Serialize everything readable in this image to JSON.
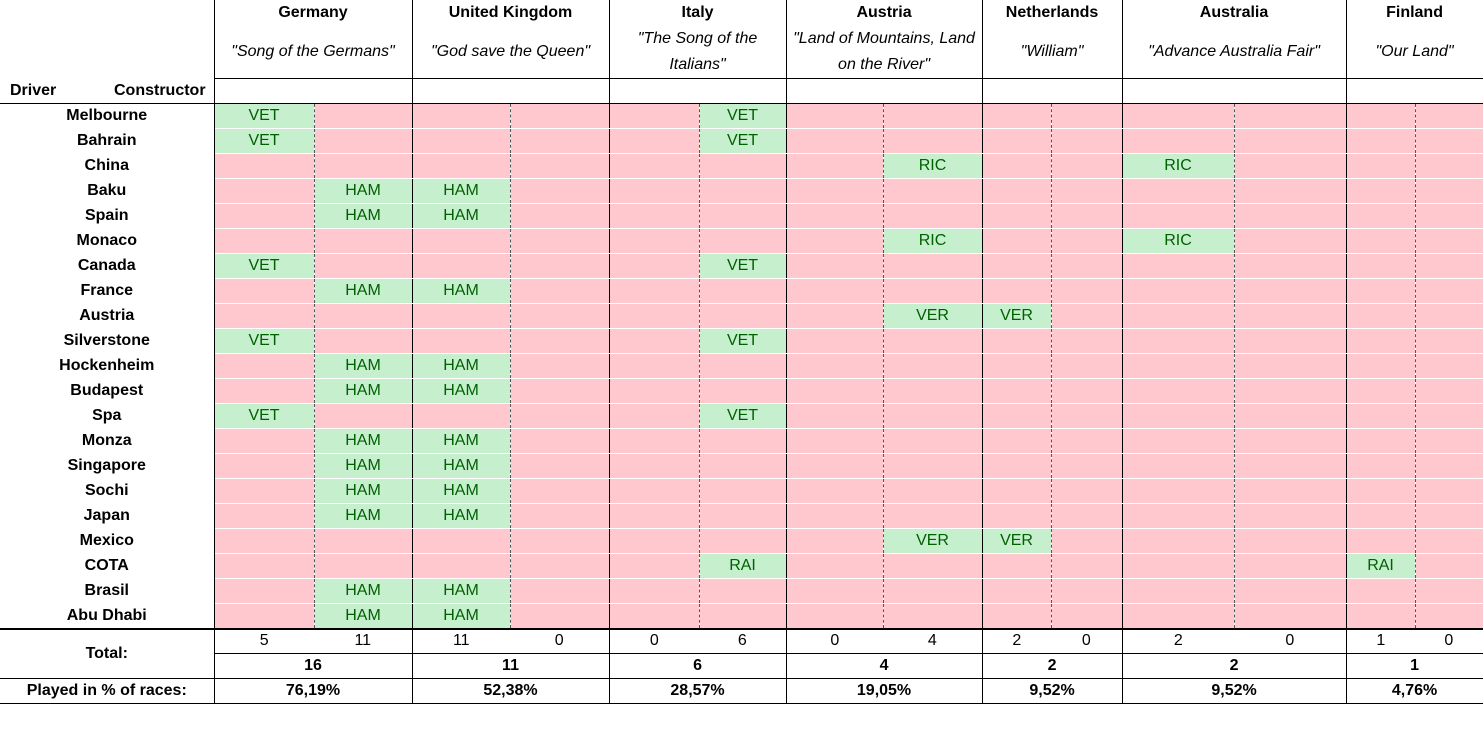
{
  "countries": [
    {
      "name": "Germany",
      "anthem": "\"Song of the Germans\"",
      "driver_total": "5",
      "constructor_total": "11",
      "sum": "16",
      "percent": "76,19%"
    },
    {
      "name": "United Kingdom",
      "anthem": "\"God save the Queen\"",
      "driver_total": "11",
      "constructor_total": "0",
      "sum": "11",
      "percent": "52,38%"
    },
    {
      "name": "Italy",
      "anthem": "\"The Song of the Italians\"",
      "driver_total": "0",
      "constructor_total": "6",
      "sum": "6",
      "percent": "28,57%"
    },
    {
      "name": "Austria",
      "anthem": "\"Land of Mountains, Land on the River\"",
      "driver_total": "0",
      "constructor_total": "4",
      "sum": "4",
      "percent": "19,05%"
    },
    {
      "name": "Netherlands",
      "anthem": "\"William\"",
      "driver_total": "2",
      "constructor_total": "0",
      "sum": "2",
      "percent": "9,52%"
    },
    {
      "name": "Australia",
      "anthem": "\"Advance Australia Fair\"",
      "driver_total": "2",
      "constructor_total": "0",
      "sum": "2",
      "percent": "9,52%"
    },
    {
      "name": "Finland",
      "anthem": "\"Our Land\"",
      "driver_total": "1",
      "constructor_total": "0",
      "sum": "1",
      "percent": "4,76%"
    }
  ],
  "header": {
    "driver": "Driver",
    "constructor": "Constructor"
  },
  "labels": {
    "total": "Total:",
    "played": "Played in % of races:"
  },
  "colors": {
    "played": "#c6efce",
    "played_text": "#006100",
    "not_played": "#ffc7ce"
  },
  "races": [
    {
      "name": "Melbourne",
      "cells": [
        "VET",
        "",
        "",
        "",
        "",
        "VET",
        "",
        "",
        "",
        "",
        "",
        "",
        "",
        ""
      ]
    },
    {
      "name": "Bahrain",
      "cells": [
        "VET",
        "",
        "",
        "",
        "",
        "VET",
        "",
        "",
        "",
        "",
        "",
        "",
        "",
        ""
      ]
    },
    {
      "name": "China",
      "cells": [
        "",
        "",
        "",
        "",
        "",
        "",
        "",
        "RIC",
        "",
        "",
        "RIC",
        "",
        "",
        ""
      ]
    },
    {
      "name": "Baku",
      "cells": [
        "",
        "HAM",
        "HAM",
        "",
        "",
        "",
        "",
        "",
        "",
        "",
        "",
        "",
        "",
        ""
      ]
    },
    {
      "name": "Spain",
      "cells": [
        "",
        "HAM",
        "HAM",
        "",
        "",
        "",
        "",
        "",
        "",
        "",
        "",
        "",
        "",
        ""
      ]
    },
    {
      "name": "Monaco",
      "cells": [
        "",
        "",
        "",
        "",
        "",
        "",
        "",
        "RIC",
        "",
        "",
        "RIC",
        "",
        "",
        ""
      ]
    },
    {
      "name": "Canada",
      "cells": [
        "VET",
        "",
        "",
        "",
        "",
        "VET",
        "",
        "",
        "",
        "",
        "",
        "",
        "",
        ""
      ]
    },
    {
      "name": "France",
      "cells": [
        "",
        "HAM",
        "HAM",
        "",
        "",
        "",
        "",
        "",
        "",
        "",
        "",
        "",
        "",
        ""
      ]
    },
    {
      "name": "Austria",
      "cells": [
        "",
        "",
        "",
        "",
        "",
        "",
        "",
        "VER",
        "VER",
        "",
        "",
        "",
        "",
        ""
      ]
    },
    {
      "name": "Silverstone",
      "cells": [
        "VET",
        "",
        "",
        "",
        "",
        "VET",
        "",
        "",
        "",
        "",
        "",
        "",
        "",
        ""
      ]
    },
    {
      "name": "Hockenheim",
      "cells": [
        "",
        "HAM",
        "HAM",
        "",
        "",
        "",
        "",
        "",
        "",
        "",
        "",
        "",
        "",
        ""
      ]
    },
    {
      "name": "Budapest",
      "cells": [
        "",
        "HAM",
        "HAM",
        "",
        "",
        "",
        "",
        "",
        "",
        "",
        "",
        "",
        "",
        ""
      ]
    },
    {
      "name": "Spa",
      "cells": [
        "VET",
        "",
        "",
        "",
        "",
        "VET",
        "",
        "",
        "",
        "",
        "",
        "",
        "",
        ""
      ]
    },
    {
      "name": "Monza",
      "cells": [
        "",
        "HAM",
        "HAM",
        "",
        "",
        "",
        "",
        "",
        "",
        "",
        "",
        "",
        "",
        ""
      ]
    },
    {
      "name": "Singapore",
      "cells": [
        "",
        "HAM",
        "HAM",
        "",
        "",
        "",
        "",
        "",
        "",
        "",
        "",
        "",
        "",
        ""
      ]
    },
    {
      "name": "Sochi",
      "cells": [
        "",
        "HAM",
        "HAM",
        "",
        "",
        "",
        "",
        "",
        "",
        "",
        "",
        "",
        "",
        ""
      ]
    },
    {
      "name": "Japan",
      "cells": [
        "",
        "HAM",
        "HAM",
        "",
        "",
        "",
        "",
        "",
        "",
        "",
        "",
        "",
        "",
        ""
      ]
    },
    {
      "name": "Mexico",
      "cells": [
        "",
        "",
        "",
        "",
        "",
        "",
        "",
        "VER",
        "VER",
        "",
        "",
        "",
        "",
        ""
      ]
    },
    {
      "name": "COTA",
      "cells": [
        "",
        "",
        "",
        "",
        "",
        "RAI",
        "",
        "",
        "",
        "",
        "",
        "",
        "RAI",
        ""
      ]
    },
    {
      "name": "Brasil",
      "cells": [
        "",
        "HAM",
        "HAM",
        "",
        "",
        "",
        "",
        "",
        "",
        "",
        "",
        "",
        "",
        ""
      ]
    },
    {
      "name": "Abu Dhabi",
      "cells": [
        "",
        "HAM",
        "HAM",
        "",
        "",
        "",
        "",
        "",
        "",
        "",
        "",
        "",
        "",
        ""
      ]
    }
  ]
}
